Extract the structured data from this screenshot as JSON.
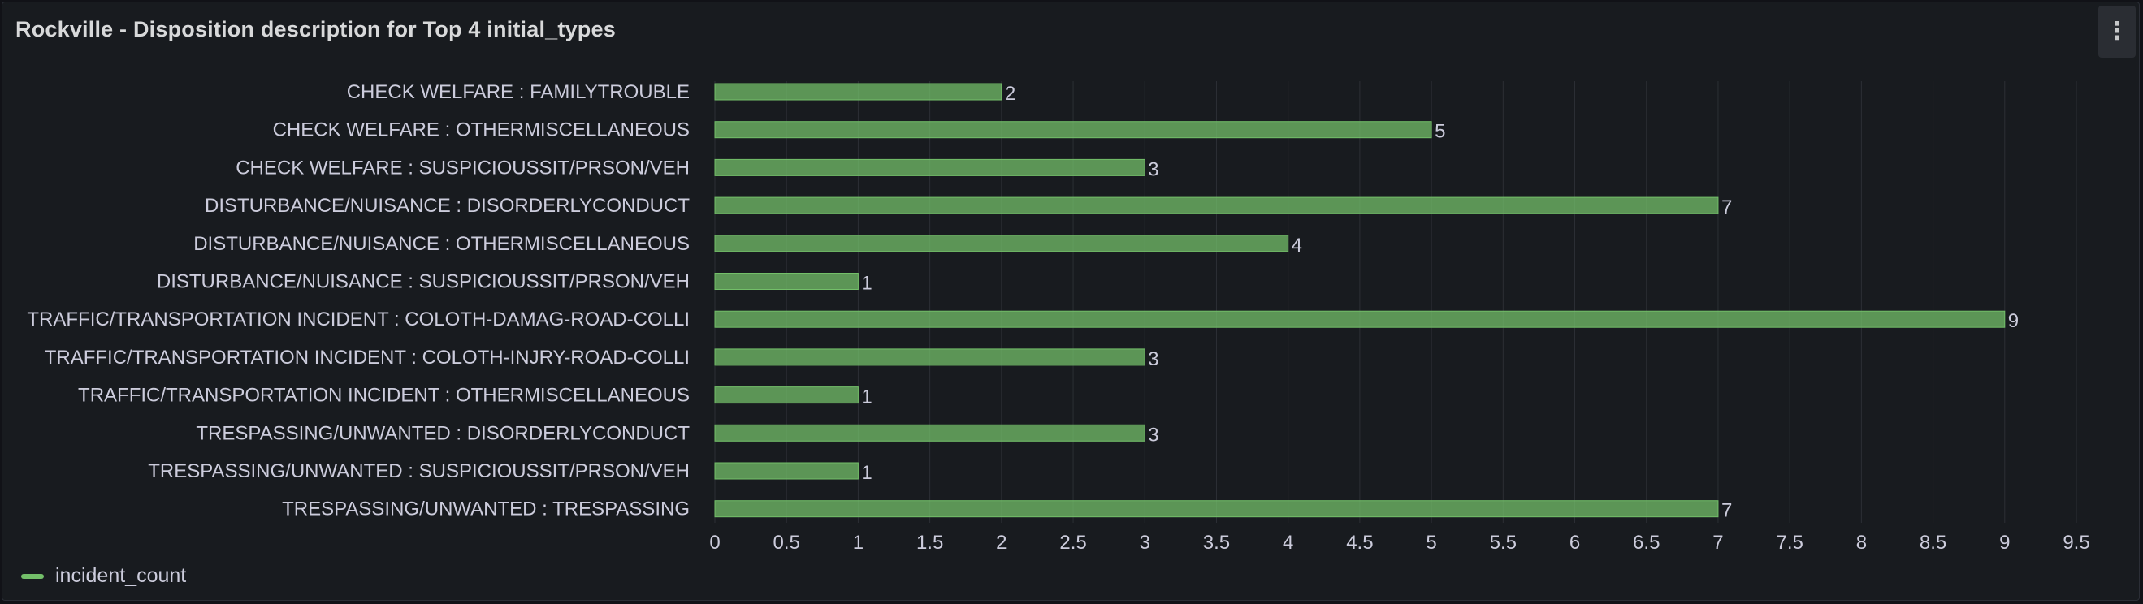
{
  "panel": {
    "title": "Rockville - Disposition description for Top 4 initial_types",
    "menu_icon": "kebab-vertical-icon"
  },
  "colors": {
    "bar_fill": "#73bf69",
    "bar_fill_opacity": 0.75,
    "text": "#ccccdc",
    "grid": "#2c2f35",
    "panel_bg": "#181b1f"
  },
  "chart_data": {
    "type": "bar",
    "orientation": "horizontal",
    "title": "Rockville - Disposition description for Top 4 initial_types",
    "xlabel": "",
    "ylabel": "",
    "xlim": [
      0,
      9.5
    ],
    "x_ticks": [
      "0",
      "0.5",
      "1",
      "1.5",
      "2",
      "2.5",
      "3",
      "3.5",
      "4",
      "4.5",
      "5",
      "5.5",
      "6",
      "6.5",
      "7",
      "7.5",
      "8",
      "8.5",
      "9",
      "9.5"
    ],
    "grid": true,
    "legend_position": "bottom-left",
    "show_value_labels": true,
    "categories": [
      "CHECK WELFARE : FAMILYTROUBLE",
      "CHECK WELFARE : OTHERMISCELLANEOUS",
      "CHECK WELFARE : SUSPICIOUSSIT/PRSON/VEH",
      "DISTURBANCE/NUISANCE : DISORDERLYCONDUCT",
      "DISTURBANCE/NUISANCE : OTHERMISCELLANEOUS",
      "DISTURBANCE/NUISANCE : SUSPICIOUSSIT/PRSON/VEH",
      "TRAFFIC/TRANSPORTATION INCIDENT : COLOTH-DAMAG-ROAD-COLLI",
      "TRAFFIC/TRANSPORTATION INCIDENT : COLOTH-INJRY-ROAD-COLLI",
      "TRAFFIC/TRANSPORTATION INCIDENT : OTHERMISCELLANEOUS",
      "TRESPASSING/UNWANTED : DISORDERLYCONDUCT",
      "TRESPASSING/UNWANTED : SUSPICIOUSSIT/PRSON/VEH",
      "TRESPASSING/UNWANTED : TRESPASSING"
    ],
    "series": [
      {
        "name": "incident_count",
        "values": [
          2,
          5,
          3,
          7,
          4,
          1,
          9,
          3,
          1,
          3,
          1,
          7
        ]
      }
    ]
  }
}
